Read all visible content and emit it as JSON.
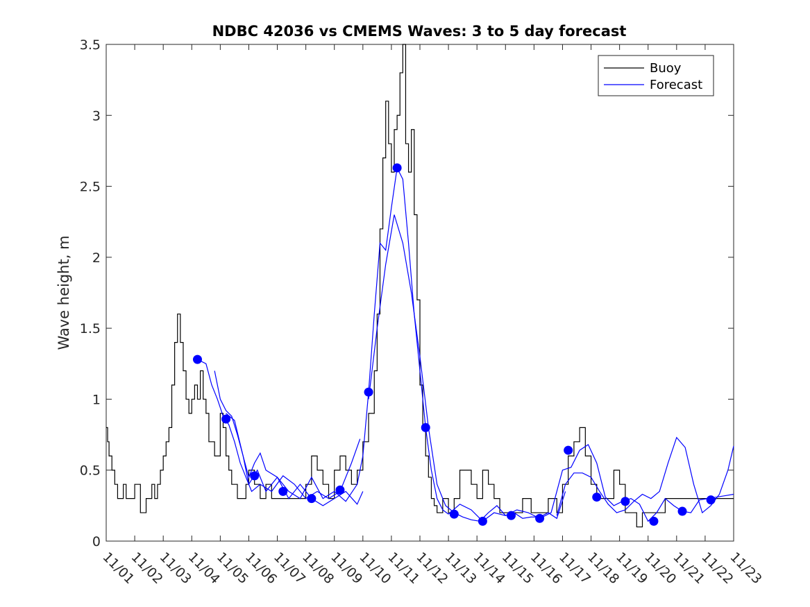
{
  "chart_data": {
    "type": "line",
    "title": "NDBC 42036 vs CMEMS Waves: 3 to 5 day forecast",
    "xlabel": "",
    "ylabel": "Wave height, m",
    "x_tick_labels": [
      "11/01",
      "11/02",
      "11/03",
      "11/04",
      "11/05",
      "11/06",
      "11/07",
      "11/08",
      "11/09",
      "11/10",
      "11/11",
      "11/12",
      "11/13",
      "11/14",
      "11/15",
      "11/16",
      "11/17",
      "11/18",
      "11/19",
      "11/20",
      "11/21",
      "11/22",
      "11/23"
    ],
    "xlim": [
      0,
      22
    ],
    "y_tick_labels": [
      "0",
      "0.5",
      "1",
      "1.5",
      "2",
      "2.5",
      "3",
      "3.5"
    ],
    "y_ticks": [
      0,
      0.5,
      1,
      1.5,
      2,
      2.5,
      3,
      3.5
    ],
    "ylim": [
      0,
      3.5
    ],
    "grid": false,
    "legend": {
      "position": "top-right",
      "entries": [
        "Buoy",
        "Forecast"
      ]
    },
    "series": [
      {
        "name": "Buoy",
        "color": "#000000",
        "style": "step",
        "x": [
          0,
          0.05,
          0.1,
          0.2,
          0.3,
          0.4,
          0.5,
          0.6,
          0.7,
          0.8,
          1.0,
          1.2,
          1.3,
          1.4,
          1.5,
          1.6,
          1.7,
          1.8,
          1.9,
          2.0,
          2.1,
          2.2,
          2.3,
          2.4,
          2.5,
          2.6,
          2.7,
          2.8,
          2.9,
          3.0,
          3.1,
          3.2,
          3.3,
          3.4,
          3.5,
          3.6,
          3.7,
          3.8,
          3.9,
          4.0,
          4.1,
          4.2,
          4.3,
          4.4,
          4.5,
          4.6,
          4.7,
          4.8,
          4.9,
          5.0,
          5.2,
          5.4,
          5.6,
          5.8,
          6.0,
          6.5,
          7.0,
          7.2,
          7.4,
          7.6,
          7.8,
          8.0,
          8.2,
          8.4,
          8.6,
          8.8,
          9.0,
          9.2,
          9.4,
          9.5,
          9.6,
          9.7,
          9.8,
          9.9,
          10.0,
          10.1,
          10.2,
          10.3,
          10.4,
          10.5,
          10.6,
          10.7,
          10.8,
          10.9,
          11.0,
          11.1,
          11.2,
          11.3,
          11.4,
          11.5,
          11.6,
          11.8,
          12.0,
          12.2,
          12.4,
          12.6,
          12.8,
          13.0,
          13.2,
          13.4,
          13.6,
          13.8,
          14.0,
          14.3,
          14.6,
          14.9,
          15.2,
          15.5,
          15.8,
          16.0,
          16.2,
          16.4,
          16.6,
          16.8,
          17.0,
          17.2,
          17.4,
          17.6,
          17.8,
          18.0,
          18.2,
          18.4,
          18.6,
          18.8,
          19.0,
          19.3,
          19.6,
          19.9,
          20.2,
          20.5,
          20.8,
          21.1,
          21.4,
          21.7,
          22.0
        ],
        "values": [
          0.8,
          0.7,
          0.6,
          0.5,
          0.4,
          0.3,
          0.3,
          0.4,
          0.3,
          0.3,
          0.4,
          0.2,
          0.2,
          0.3,
          0.3,
          0.4,
          0.3,
          0.4,
          0.5,
          0.6,
          0.7,
          0.8,
          1.1,
          1.4,
          1.6,
          1.4,
          1.2,
          1.0,
          0.9,
          1.0,
          1.1,
          1.0,
          1.2,
          1.0,
          0.9,
          0.7,
          0.7,
          0.6,
          0.6,
          0.9,
          0.8,
          0.6,
          0.5,
          0.4,
          0.4,
          0.3,
          0.3,
          0.3,
          0.4,
          0.5,
          0.4,
          0.3,
          0.4,
          0.3,
          0.3,
          0.3,
          0.4,
          0.6,
          0.5,
          0.4,
          0.3,
          0.5,
          0.6,
          0.5,
          0.4,
          0.5,
          0.7,
          0.9,
          1.2,
          1.6,
          2.2,
          2.7,
          3.1,
          2.8,
          2.6,
          2.9,
          3.0,
          3.3,
          3.5,
          2.8,
          2.6,
          2.9,
          2.3,
          1.7,
          1.1,
          0.8,
          0.6,
          0.45,
          0.3,
          0.25,
          0.2,
          0.3,
          0.2,
          0.3,
          0.5,
          0.5,
          0.4,
          0.3,
          0.5,
          0.4,
          0.3,
          0.2,
          0.2,
          0.2,
          0.3,
          0.2,
          0.2,
          0.3,
          0.2,
          0.4,
          0.6,
          0.7,
          0.8,
          0.6,
          0.4,
          0.3,
          0.3,
          0.3,
          0.5,
          0.4,
          0.2,
          0.2,
          0.1,
          0.2,
          0.2,
          0.2,
          0.3,
          0.3,
          0.3,
          0.3,
          0.3,
          0.3,
          0.3,
          0.3,
          0.3
        ]
      },
      {
        "name": "Forecast",
        "color": "#0000ff",
        "segments": [
          {
            "x": [
              3.2,
              3.5,
              3.7,
              3.9,
              4.1,
              4.3,
              4.5,
              4.7,
              4.9,
              5.1,
              5.4,
              5.8,
              6.2,
              6.6,
              7.0,
              7.4,
              7.8,
              8.2,
              8.6,
              8.9
            ],
            "values": [
              1.28,
              1.25,
              1.1,
              1.0,
              0.88,
              0.82,
              0.7,
              0.55,
              0.45,
              0.35,
              0.4,
              0.35,
              0.46,
              0.4,
              0.3,
              0.35,
              0.3,
              0.35,
              0.55,
              0.72
            ]
          },
          {
            "x": [
              3.8,
              4.0,
              4.2,
              4.4,
              4.6,
              4.8,
              5.0,
              5.2,
              5.4,
              5.6,
              6.0,
              6.4,
              6.8,
              7.2,
              7.6,
              8.0,
              8.4,
              8.8,
              9.0
            ],
            "values": [
              1.2,
              1.0,
              0.92,
              0.88,
              0.75,
              0.6,
              0.45,
              0.55,
              0.62,
              0.5,
              0.45,
              0.3,
              0.4,
              0.3,
              0.25,
              0.3,
              0.35,
              0.26,
              0.35
            ]
          },
          {
            "x": [
              4.2,
              4.5,
              4.8,
              5.0,
              5.3,
              5.6,
              6.0,
              6.4,
              6.8,
              7.2,
              7.6,
              8.0,
              8.4,
              8.8,
              9.0,
              9.2,
              9.4,
              9.6,
              9.8,
              10.0,
              10.2,
              10.4,
              10.6,
              10.8,
              11.0,
              11.2,
              11.4,
              11.6,
              11.8,
              12.0
            ],
            "values": [
              0.9,
              0.85,
              0.6,
              0.4,
              0.5,
              0.35,
              0.45,
              0.35,
              0.3,
              0.45,
              0.3,
              0.35,
              0.28,
              0.4,
              0.6,
              1.05,
              1.6,
              2.1,
              2.05,
              2.35,
              2.63,
              2.55,
              2.1,
              1.6,
              1.2,
              0.8,
              0.5,
              0.3,
              0.22,
              0.19
            ]
          },
          {
            "x": [
              9.2,
              9.5,
              9.8,
              10.1,
              10.4,
              10.7,
              11.0,
              11.3,
              11.6,
              11.9,
              12.2,
              12.5,
              12.8,
              13.1,
              13.4,
              13.7,
              14.0,
              14.3,
              14.6,
              14.9,
              15.2,
              15.5,
              15.8,
              16.1
            ],
            "values": [
              1.0,
              1.5,
              1.95,
              2.3,
              2.1,
              1.75,
              1.3,
              0.8,
              0.4,
              0.25,
              0.2,
              0.17,
              0.15,
              0.14,
              0.2,
              0.25,
              0.18,
              0.2,
              0.16,
              0.17,
              0.17,
              0.2,
              0.16,
              0.35
            ]
          },
          {
            "x": [
              12.0,
              12.4,
              12.8,
              13.2,
              13.6,
              14.0,
              14.4,
              14.8,
              15.2,
              15.6,
              16.0,
              16.3,
              16.6,
              16.9,
              17.2,
              17.5,
              17.8,
              18.1,
              18.4,
              18.7,
              19.0,
              19.3,
              19.6,
              19.9,
              20.2,
              20.5,
              20.8,
              21.1,
              21.4,
              21.7,
              22.0
            ],
            "values": [
              0.19,
              0.26,
              0.22,
              0.14,
              0.2,
              0.18,
              0.22,
              0.2,
              0.16,
              0.2,
              0.5,
              0.52,
              0.64,
              0.68,
              0.55,
              0.31,
              0.25,
              0.28,
              0.3,
              0.26,
              0.14,
              0.2,
              0.3,
              0.25,
              0.21,
              0.2,
              0.29,
              0.3,
              0.31,
              0.32,
              0.33
            ]
          },
          {
            "x": [
              15.8,
              16.1,
              16.4,
              16.7,
              17.0,
              17.3,
              17.6,
              17.9,
              18.2,
              18.5,
              18.8,
              19.1,
              19.4,
              19.7,
              20.0,
              20.3,
              20.6,
              20.9,
              21.2,
              21.5,
              21.8,
              22.0
            ],
            "values": [
              0.18,
              0.4,
              0.48,
              0.48,
              0.45,
              0.35,
              0.26,
              0.2,
              0.22,
              0.28,
              0.33,
              0.3,
              0.35,
              0.55,
              0.73,
              0.66,
              0.4,
              0.2,
              0.25,
              0.33,
              0.5,
              0.67
            ]
          }
        ],
        "markers": {
          "x": [
            3.2,
            4.2,
            5.2,
            6.2,
            7.2,
            8.2,
            9.2,
            10.2,
            11.2,
            12.2,
            13.2,
            14.2,
            15.2,
            16.2,
            17.2,
            18.2,
            19.2,
            20.2,
            21.2
          ],
          "values": [
            1.28,
            0.86,
            0.46,
            0.35,
            0.3,
            0.36,
            1.05,
            2.63,
            0.8,
            0.19,
            0.14,
            0.18,
            0.16,
            0.64,
            0.31,
            0.28,
            0.14,
            0.21,
            0.29
          ]
        }
      }
    ]
  }
}
